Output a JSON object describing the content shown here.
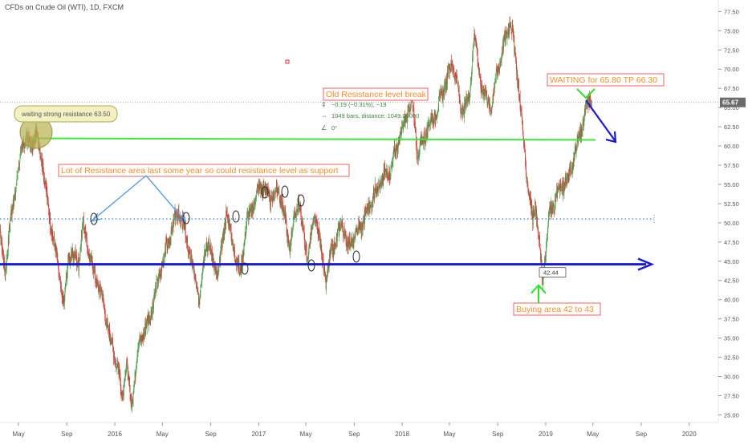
{
  "header": {
    "title": "CFDs on Crude Oil (WTI), 1D, FXCM"
  },
  "chart_data": {
    "type": "candlestick",
    "title": "CFDs on Crude Oil (WTI), 1D, FXCM",
    "y_ticks": [
      "77.50",
      "75.00",
      "72.50",
      "70.00",
      "67.50",
      "65.00",
      "62.50",
      "60.00",
      "57.50",
      "55.00",
      "52.50",
      "50.00",
      "47.50",
      "45.00",
      "42.50",
      "40.00",
      "37.50",
      "35.00",
      "32.50",
      "30.00",
      "27.50",
      "25.00"
    ],
    "ylim": [
      24.0,
      79.0
    ],
    "x_ticks": [
      "May",
      "Sep",
      "2016",
      "May",
      "Sep",
      "2017",
      "May",
      "Sep",
      "2018",
      "May",
      "Sep",
      "2019",
      "May",
      "Sep",
      "2020"
    ],
    "x_tick_dates": [
      "2015-05-01",
      "2015-09-01",
      "2016-01-01",
      "2016-05-01",
      "2016-09-01",
      "2017-01-01",
      "2017-05-01",
      "2017-09-01",
      "2018-01-01",
      "2018-05-01",
      "2018-09-01",
      "2019-01-01",
      "2019-05-01",
      "2019-09-01",
      "2020-01-01"
    ],
    "xlim": [
      "2015-03-15",
      "2020-03-15"
    ],
    "current_price": "65.67",
    "price_path": [
      [
        "2015-03-15",
        48.0
      ],
      [
        "2015-03-28",
        44.0
      ],
      [
        "2015-04-15",
        52.0
      ],
      [
        "2015-05-01",
        57.0
      ],
      [
        "2015-05-15",
        61.0
      ],
      [
        "2015-06-01",
        60.0
      ],
      [
        "2015-06-15",
        61.5
      ],
      [
        "2015-07-01",
        58.0
      ],
      [
        "2015-07-15",
        52.0
      ],
      [
        "2015-08-01",
        47.0
      ],
      [
        "2015-08-25",
        39.0
      ],
      [
        "2015-09-05",
        46.0
      ],
      [
        "2015-10-01",
        45.0
      ],
      [
        "2015-10-12",
        50.0
      ],
      [
        "2015-11-01",
        45.0
      ],
      [
        "2015-12-01",
        40.0
      ],
      [
        "2015-12-20",
        35.0
      ],
      [
        "2016-01-10",
        31.0
      ],
      [
        "2016-01-20",
        27.0
      ],
      [
        "2016-02-01",
        32.0
      ],
      [
        "2016-02-11",
        26.0
      ],
      [
        "2016-03-01",
        34.0
      ],
      [
        "2016-04-01",
        38.0
      ],
      [
        "2016-05-01",
        45.0
      ],
      [
        "2016-06-09",
        51.5
      ],
      [
        "2016-07-01",
        48.0
      ],
      [
        "2016-08-03",
        40.0
      ],
      [
        "2016-08-20",
        48.0
      ],
      [
        "2016-09-20",
        43.0
      ],
      [
        "2016-10-10",
        51.5
      ],
      [
        "2016-11-14",
        43.0
      ],
      [
        "2016-12-01",
        50.0
      ],
      [
        "2017-01-06",
        55.0
      ],
      [
        "2017-02-01",
        53.0
      ],
      [
        "2017-02-22",
        54.5
      ],
      [
        "2017-03-20",
        47.0
      ],
      [
        "2017-04-12",
        53.0
      ],
      [
        "2017-05-04",
        45.5
      ],
      [
        "2017-05-25",
        51.0
      ],
      [
        "2017-06-21",
        42.5
      ],
      [
        "2017-07-05",
        46.0
      ],
      [
        "2017-08-01",
        50.0
      ],
      [
        "2017-08-15",
        47.0
      ],
      [
        "2017-09-01",
        48.0
      ],
      [
        "2017-10-01",
        51.0
      ],
      [
        "2017-11-01",
        55.0
      ],
      [
        "2017-12-01",
        57.0
      ],
      [
        "2018-01-25",
        66.0
      ],
      [
        "2018-02-09",
        59.0
      ],
      [
        "2018-03-05",
        62.0
      ],
      [
        "2018-04-01",
        65.0
      ],
      [
        "2018-05-10",
        71.0
      ],
      [
        "2018-06-01",
        64.5
      ],
      [
        "2018-06-20",
        66.0
      ],
      [
        "2018-07-03",
        75.0
      ],
      [
        "2018-07-20",
        68.0
      ],
      [
        "2018-08-15",
        65.0
      ],
      [
        "2018-09-01",
        70.0
      ],
      [
        "2018-10-03",
        76.5
      ],
      [
        "2018-10-20",
        70.0
      ],
      [
        "2018-11-10",
        58.0
      ],
      [
        "2018-11-29",
        50.0
      ],
      [
        "2018-12-05",
        53.0
      ],
      [
        "2018-12-24",
        42.4
      ],
      [
        "2019-01-10",
        51.0
      ],
      [
        "2019-02-01",
        54.0
      ],
      [
        "2019-03-01",
        56.0
      ],
      [
        "2019-04-01",
        62.0
      ],
      [
        "2019-04-23",
        66.5
      ],
      [
        "2019-04-28",
        65.67
      ]
    ],
    "horizontal_levels": [
      {
        "price": 61.0,
        "style": "green-solid"
      },
      {
        "price": 50.5,
        "style": "blue-dotted"
      },
      {
        "price": 44.6,
        "style": "blue-thick"
      }
    ],
    "annotations": {
      "callout": "waiting strong resistance 63.50",
      "resistance_note": "Lot of Resistance area last some year so could resistance level as support",
      "old_break": "Old Resistance level break",
      "measure_price": "−0.19 (−0.31%), −19",
      "measure_bars": "1049 bars, distance: 1049.00000",
      "measure_angle": "0°",
      "waiting": "WAITING for 65.80 TP 66.30",
      "buying": "Buying area 42 to 43",
      "low_label": "42.44"
    },
    "colors": {
      "up": "#53a153",
      "down": "#d63c3c",
      "green_line": "#3ae83a",
      "blue_line": "#1a1ad4",
      "dotted_line": "#4a8fdc",
      "arrow_blue": "#5b9cdf",
      "note_text": "#f28f2c",
      "note_border": "#f46060",
      "last_price_bg": "#6b6b6b"
    }
  }
}
